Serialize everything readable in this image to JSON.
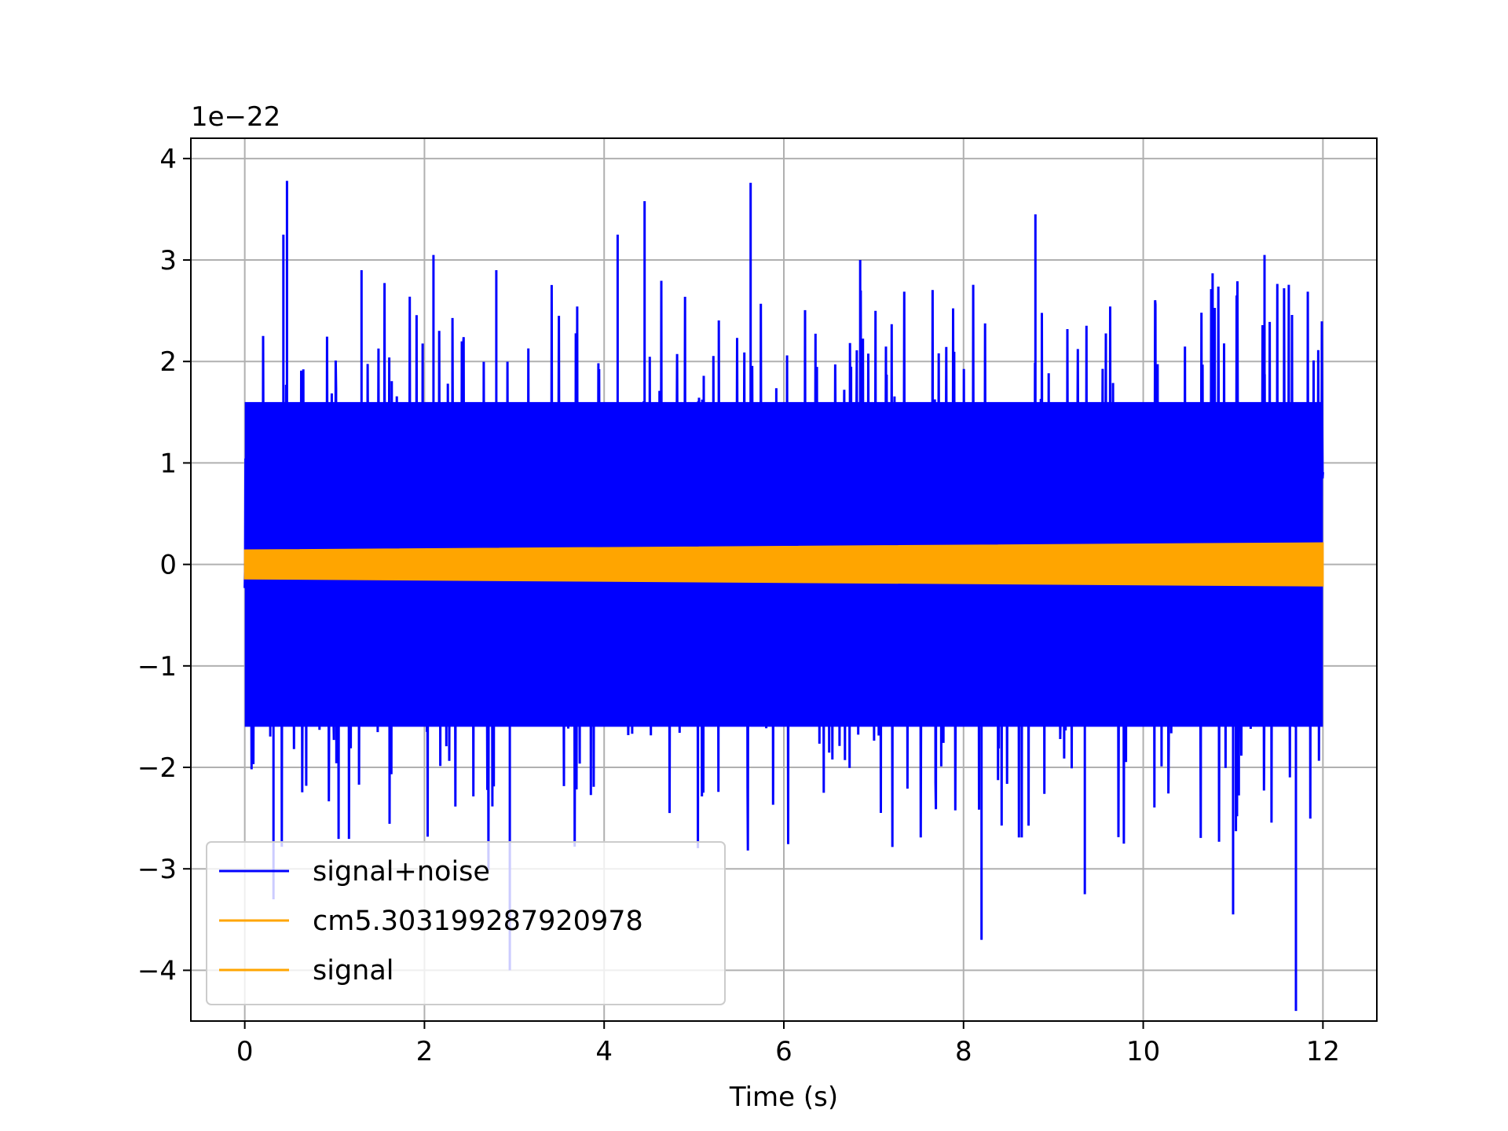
{
  "chart_data": {
    "type": "line",
    "title": "",
    "xlabel": "Time (s)",
    "ylabel": "",
    "y_offset_text": "1e−22",
    "y_scale_factor": 1e-22,
    "xlim": [
      -0.6,
      12.6
    ],
    "ylim": [
      -4.5,
      4.2
    ],
    "x_ticks": [
      0,
      2,
      4,
      6,
      8,
      10,
      12
    ],
    "x_tick_labels": [
      "0",
      "2",
      "4",
      "6",
      "8",
      "10",
      "12"
    ],
    "y_ticks": [
      -4,
      -3,
      -2,
      -1,
      0,
      1,
      2,
      3,
      4
    ],
    "y_tick_labels": [
      "−4",
      "−3",
      "−2",
      "−1",
      "0",
      "1",
      "2",
      "3",
      "4"
    ],
    "grid": true,
    "legend_position": "lower-left",
    "series": [
      {
        "name": "signal+noise",
        "color": "#0000ff",
        "x_range": [
          0,
          12
        ],
        "description_values": {
          "dense_band_min": -1.6,
          "dense_band_max": 1.6,
          "peak_max": 3.78,
          "peak_min": -4.4,
          "spikes": [
            {
              "x": 0.43,
              "y": 3.25
            },
            {
              "x": 0.47,
              "y": 3.78
            },
            {
              "x": 1.3,
              "y": 2.9
            },
            {
              "x": 2.1,
              "y": 3.05
            },
            {
              "x": 2.8,
              "y": 2.9
            },
            {
              "x": 4.15,
              "y": 3.25
            },
            {
              "x": 4.45,
              "y": 3.58
            },
            {
              "x": 5.63,
              "y": 3.76
            },
            {
              "x": 6.85,
              "y": 3.0
            },
            {
              "x": 8.8,
              "y": 3.45
            },
            {
              "x": 11.35,
              "y": 3.05
            },
            {
              "x": 0.32,
              "y": -3.3
            },
            {
              "x": 2.95,
              "y": -4.0
            },
            {
              "x": 8.2,
              "y": -3.7
            },
            {
              "x": 11.7,
              "y": -4.4
            },
            {
              "x": 11.0,
              "y": -3.45
            },
            {
              "x": 9.35,
              "y": -3.25
            }
          ]
        }
      },
      {
        "name": "cm5.303199287920978",
        "color": "#ffa500",
        "x_range": [
          0,
          12
        ],
        "amplitude_start": 0.14,
        "amplitude_end": 0.21
      },
      {
        "name": "signal",
        "color": "#ffa500",
        "x_range": [
          0,
          12
        ],
        "amplitude_start": 0.14,
        "amplitude_end": 0.21
      }
    ]
  }
}
